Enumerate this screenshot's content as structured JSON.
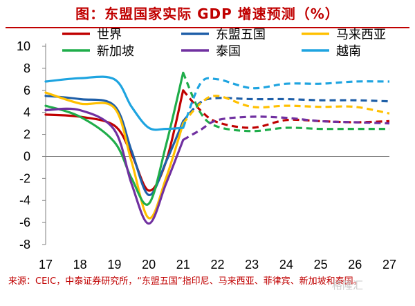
{
  "title": "图：东盟国家实际 GDP 增速预测（%）",
  "source_note": "来源：CEIC，中泰证券研究所，“东盟五国”指印尼、马来西亚、菲律宾、新加坡和泰国。",
  "watermark": "格隆汇",
  "chart_data": {
    "type": "line",
    "x_ticks": [
      "17",
      "18",
      "19",
      "20",
      "21",
      "22",
      "23",
      "24",
      "25",
      "26",
      "27"
    ],
    "y_ticks": [
      -8,
      -6,
      -4,
      -2,
      0,
      2,
      4,
      6,
      8,
      10
    ],
    "ylim": [
      -8,
      10
    ],
    "xlim": [
      17,
      27
    ],
    "actual_until": 21,
    "series": [
      {
        "name": "世界",
        "color": "#c00000",
        "x": [
          17,
          18,
          19,
          19.5,
          20,
          20.5,
          21,
          21.5,
          22,
          23,
          24,
          25,
          26,
          27
        ],
        "y": [
          3.8,
          3.6,
          2.8,
          0.2,
          -3.1,
          -0.5,
          6.0,
          4.2,
          3.1,
          2.6,
          3.3,
          3.2,
          3.1,
          3.2
        ]
      },
      {
        "name": "东盟五国",
        "color": "#1f5fa8",
        "x": [
          17,
          18,
          19,
          19.5,
          20,
          20.5,
          21,
          21.5,
          22,
          23,
          24,
          25,
          26,
          27
        ],
        "y": [
          5.5,
          5.2,
          4.6,
          0.5,
          -3.5,
          -0.5,
          3.2,
          4.9,
          5.3,
          5.2,
          5.2,
          5.1,
          5.1,
          5.0
        ]
      },
      {
        "name": "马来西亚",
        "color": "#ffc000",
        "x": [
          17,
          18,
          19,
          19.5,
          20,
          20.5,
          21,
          21.5,
          22,
          23,
          24,
          25,
          26,
          27
        ],
        "y": [
          5.8,
          4.8,
          4.4,
          -0.5,
          -5.6,
          -2.0,
          3.0,
          4.8,
          5.5,
          4.5,
          4.6,
          4.5,
          4.5,
          3.9
        ]
      },
      {
        "name": "新加坡",
        "color": "#1fad4a",
        "x": [
          17,
          18,
          19,
          19.5,
          20,
          20.5,
          21,
          21.5,
          22,
          23,
          24,
          25,
          26,
          27
        ],
        "y": [
          4.6,
          3.6,
          1.3,
          -2.0,
          -4.3,
          1.0,
          7.6,
          4.0,
          2.7,
          2.3,
          2.6,
          2.5,
          2.5,
          2.5
        ]
      },
      {
        "name": "泰国",
        "color": "#7030a0",
        "x": [
          17,
          18,
          19,
          19.5,
          20,
          20.5,
          21,
          21.5,
          22,
          23,
          24,
          25,
          26,
          27
        ],
        "y": [
          4.2,
          4.2,
          2.4,
          -2.5,
          -6.1,
          -2.5,
          1.5,
          2.4,
          3.3,
          3.6,
          3.5,
          3.2,
          3.1,
          3.0
        ]
      },
      {
        "name": "越南",
        "color": "#1ea4e0",
        "x": [
          17,
          18,
          19,
          19.5,
          20,
          20.5,
          21,
          21.5,
          22,
          23,
          24,
          25,
          26,
          27
        ],
        "y": [
          6.8,
          7.1,
          7.0,
          4.5,
          2.6,
          2.5,
          2.6,
          6.6,
          7.0,
          6.2,
          6.6,
          6.6,
          6.8,
          6.8
        ]
      }
    ],
    "legend_position": "top (3 columns × 2 rows)"
  }
}
